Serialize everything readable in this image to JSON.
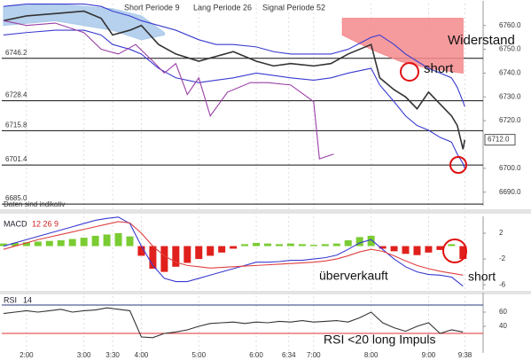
{
  "chart_data": [
    {
      "type": "line",
      "legend_text": [
        "Short Periode 9",
        "Lang Periode 26",
        "Signal Periode 52"
      ],
      "xlim": [
        1.57,
        9.95
      ],
      "ylim": [
        6684.3,
        6769.2
      ],
      "yticks": [
        {
          "value": 6760,
          "label": "6760.0"
        },
        {
          "value": 6750,
          "label": "6750.0"
        },
        {
          "value": 6740,
          "label": "6740.0"
        },
        {
          "value": 6730,
          "label": "6730.0"
        },
        {
          "value": 6720,
          "label": "6720.0"
        },
        {
          "value": 6700,
          "label": "6700.0"
        },
        {
          "value": 6690,
          "label": "6690.0"
        }
      ],
      "levels": [
        6746.2,
        6728.4,
        6715.8,
        6701.4,
        {
          "value": 6685,
          "label": "6685.0"
        }
      ],
      "last_price": {
        "value": 6712,
        "label": "6712.0"
      },
      "clouds": [
        {
          "color": "#a9c9ea",
          "x": [
            1.6,
            2.5,
            3.5,
            4.0,
            4.4
          ],
          "upper": [
            6768,
            6769,
            6767,
            6764,
            6757
          ],
          "lower": [
            6760,
            6762,
            6758,
            6754,
            6756
          ]
        },
        {
          "color": "#f4898c",
          "x": [
            7.5,
            8.0,
            8.5,
            9.0,
            9.6
          ],
          "upper": [
            6763,
            6763,
            6763,
            6763,
            6763
          ],
          "lower": [
            6756,
            6750,
            6745,
            6742,
            6740
          ]
        }
      ],
      "series": [
        {
          "color": "#333333",
          "x": [
            1.6,
            2.0,
            2.5,
            3.0,
            3.3,
            3.5,
            3.8,
            4.0,
            4.3,
            4.6,
            5.0,
            5.3,
            5.6,
            6.0,
            6.3,
            6.6,
            7.0,
            7.3,
            7.6,
            8.0,
            8.15,
            8.4,
            8.6,
            8.8,
            9.0,
            9.2,
            9.4,
            9.5,
            9.6,
            9.63
          ],
          "values": [
            6762,
            6764,
            6765,
            6766,
            6763,
            6756,
            6758,
            6760,
            6752,
            6748,
            6745,
            6747,
            6749,
            6745,
            6743,
            6744,
            6743,
            6744,
            6748,
            6752,
            6738,
            6733,
            6730,
            6725,
            6732,
            6727,
            6722,
            6718,
            6708,
            6712
          ]
        },
        {
          "color": "#3a3ad0",
          "x": [
            1.6,
            2.0,
            2.5,
            3.0,
            3.3,
            3.5,
            3.8,
            4.0,
            4.3,
            4.6,
            5.0,
            5.3,
            5.6,
            6.0,
            6.3,
            6.6,
            7.0,
            7.3,
            7.6,
            8.0,
            8.15,
            8.4,
            8.6,
            8.8,
            9.0,
            9.2,
            9.4,
            9.5,
            9.6,
            9.63
          ],
          "values": [
            6768,
            6769,
            6769,
            6769,
            6768,
            6766,
            6764,
            6762,
            6760,
            6758,
            6754,
            6752,
            6752,
            6751,
            6749,
            6748,
            6748,
            6748,
            6750,
            6755,
            6756,
            6752,
            6748,
            6745,
            6742,
            6740,
            6738,
            6734,
            6728,
            6726
          ]
        },
        {
          "color": "#3a3ad0",
          "x": [
            1.6,
            2.0,
            2.5,
            3.0,
            3.3,
            3.5,
            3.8,
            4.0,
            4.3,
            4.6,
            5.0,
            5.3,
            5.6,
            6.0,
            6.3,
            6.6,
            7.0,
            7.3,
            7.6,
            8.0,
            8.15,
            8.4,
            8.6,
            8.8,
            9.0,
            9.2,
            9.4,
            9.5,
            9.6,
            9.63
          ],
          "values": [
            6756,
            6757,
            6758,
            6758,
            6756,
            6752,
            6750,
            6748,
            6742,
            6738,
            6736,
            6737,
            6738,
            6740,
            6739,
            6738,
            6737,
            6738,
            6740,
            6742,
            6735,
            6728,
            6722,
            6718,
            6716,
            6713,
            6711,
            6706,
            6702,
            6700
          ]
        },
        {
          "color": "#9a3fa6",
          "x": [
            1.6,
            2.0,
            2.5,
            3.0,
            3.3,
            3.6,
            3.9,
            4.2,
            4.4,
            4.6,
            4.8,
            5.0,
            5.2,
            5.5,
            5.9,
            6.2,
            6.6,
            7.0,
            7.1,
            7.35
          ],
          "values": [
            6762,
            6760,
            6761,
            6757,
            6750,
            6748,
            6752,
            6745,
            6740,
            6744,
            6731,
            6738,
            6722,
            6732,
            6736,
            6736,
            6735,
            6728,
            6704,
            6706
          ]
        }
      ],
      "annotations": [
        "Widerstand",
        "short",
        "Daten sind indikativ"
      ]
    },
    {
      "type": "bar",
      "label": "MACD",
      "params": "12 26 9",
      "xlim": [
        1.57,
        9.95
      ],
      "ylim": [
        -6.8,
        4.2
      ],
      "yticks": [
        2,
        -2,
        -6
      ],
      "pos_color": "#7acc32",
      "neg_color": "#e0201c",
      "x": [
        1.6,
        1.8,
        2.0,
        2.2,
        2.4,
        2.6,
        2.8,
        3.0,
        3.2,
        3.4,
        3.6,
        3.8,
        4.0,
        4.2,
        4.4,
        4.6,
        4.8,
        5.0,
        5.2,
        5.4,
        5.6,
        5.8,
        6.0,
        6.2,
        6.4,
        6.6,
        6.8,
        7.0,
        7.2,
        7.4,
        7.6,
        7.8,
        8.0,
        8.2,
        8.4,
        8.6,
        8.8,
        9.0,
        9.2,
        9.4,
        9.6
      ],
      "values": [
        0.4,
        0.5,
        0.6,
        0.7,
        0.8,
        0.9,
        1.1,
        1.3,
        1.6,
        1.8,
        2.0,
        1.5,
        -1.5,
        -3.5,
        -4.0,
        -3.2,
        -2.6,
        -2.0,
        -1.5,
        -1.0,
        -0.4,
        0.3,
        0.5,
        0.4,
        0.3,
        0.4,
        0.3,
        0.2,
        0.3,
        0.4,
        0.9,
        1.4,
        1.6,
        -0.4,
        -0.8,
        -1.2,
        -1.4,
        -1.0,
        -0.6,
        0.3,
        -2.0
      ],
      "series": [
        {
          "color": "#3a3ad0",
          "values": [
            0,
            0.5,
            1,
            1.5,
            2,
            2.5,
            3,
            3.5,
            4,
            4.3,
            4.5,
            3.5,
            0,
            -3,
            -5,
            -5.5,
            -5.5,
            -5,
            -4.5,
            -4,
            -3.5,
            -3,
            -2.5,
            -2.5,
            -2.4,
            -2.2,
            -2.2,
            -2.0,
            -1.8,
            -1.4,
            -0.5,
            0.5,
            1,
            -0.5,
            -2,
            -3.2,
            -4,
            -4.4,
            -4.5,
            -4.8,
            -6.2
          ]
        },
        {
          "color": "#e04040",
          "values": [
            -0.5,
            0,
            0.5,
            1,
            1.4,
            1.8,
            2.2,
            2.6,
            3,
            3.4,
            3.8,
            3.6,
            2,
            0,
            -1.5,
            -2.5,
            -3,
            -3.2,
            -3.4,
            -3.3,
            -3.2,
            -3.1,
            -3,
            -2.9,
            -2.8,
            -2.7,
            -2.6,
            -2.5,
            -2.3,
            -2,
            -1.5,
            -0.9,
            -0.5,
            -0.8,
            -1.5,
            -2.3,
            -3,
            -3.5,
            -3.9,
            -4.2,
            -4.5
          ]
        }
      ],
      "annotations": [
        "überverkauft",
        "short"
      ]
    },
    {
      "type": "line",
      "label": "RSI",
      "params": "14",
      "xlim": [
        1.57,
        9.95
      ],
      "ylim": [
        2.5,
        83.75
      ],
      "yticks": [
        60,
        40
      ],
      "levels": [
        70,
        30
      ],
      "level_colors": [
        "#2a3a7a",
        "#e03030"
      ],
      "x": [
        1.6,
        1.8,
        2.0,
        2.2,
        2.4,
        2.6,
        2.8,
        3.0,
        3.2,
        3.4,
        3.6,
        3.8,
        4.0,
        4.2,
        4.4,
        4.6,
        4.8,
        5.0,
        5.2,
        5.4,
        5.6,
        5.8,
        6.0,
        6.2,
        6.4,
        6.6,
        6.8,
        7.0,
        7.2,
        7.4,
        7.6,
        7.8,
        8.0,
        8.2,
        8.4,
        8.6,
        8.8,
        9.0,
        9.2,
        9.4,
        9.6
      ],
      "series": [
        {
          "color": "#333333",
          "values": [
            58,
            60,
            62,
            60,
            62,
            64,
            60,
            62,
            63,
            66,
            64,
            62,
            25,
            24,
            30,
            32,
            35,
            40,
            44,
            45,
            46,
            44,
            46,
            45,
            47,
            46,
            48,
            46,
            47,
            48,
            46,
            52,
            60,
            45,
            38,
            33,
            40,
            45,
            30,
            35,
            32
          ]
        }
      ],
      "xticks": [
        {
          "value": 2,
          "label": "2:00"
        },
        {
          "value": 3,
          "label": "3:00"
        },
        {
          "value": 3.5,
          "label": "3:30"
        },
        {
          "value": 4,
          "label": "4:00"
        },
        {
          "value": 5,
          "label": "5:00"
        },
        {
          "value": 6,
          "label": "6:00"
        },
        {
          "value": 6.5667,
          "label": "6:34"
        },
        {
          "value": 7,
          "label": "7:00"
        },
        {
          "value": 8,
          "label": "8:00"
        },
        {
          "value": 9,
          "label": "9:00"
        },
        {
          "value": 9.6333,
          "label": "9:38"
        }
      ],
      "annotations": [
        "RSI <20 long Impuls"
      ]
    }
  ]
}
